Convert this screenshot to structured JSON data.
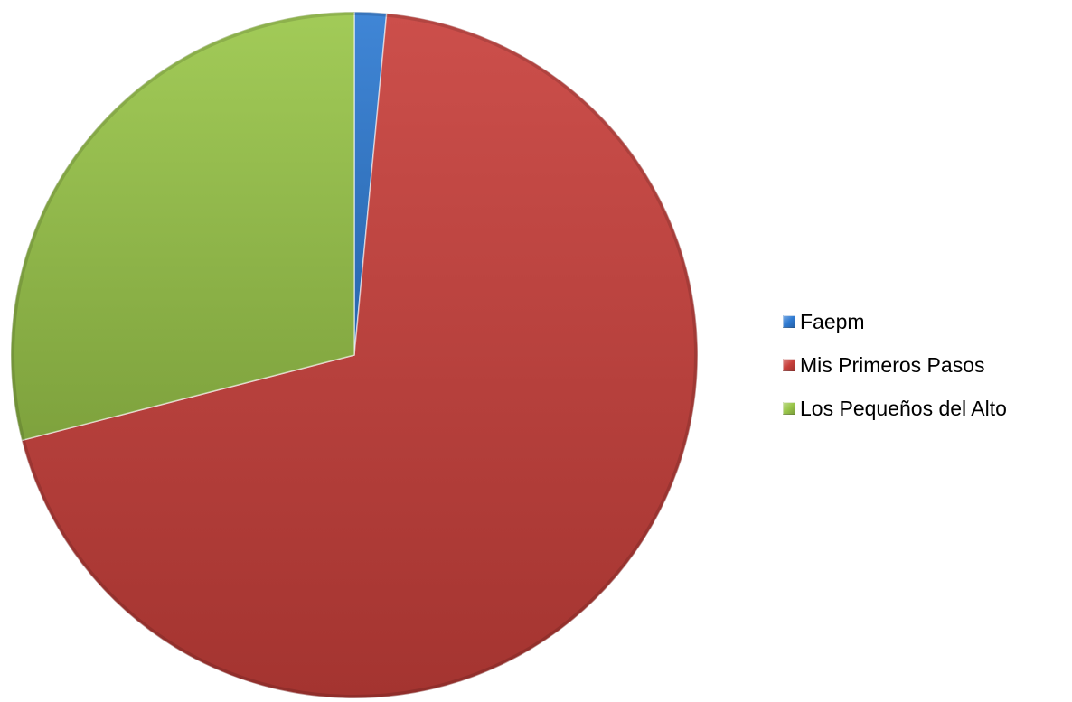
{
  "chart_data": {
    "type": "pie",
    "title": "",
    "slices": [
      {
        "label": "Faepm",
        "value": 1.5,
        "color": "#2f7bd2"
      },
      {
        "label": "Mis Primeros Pasos",
        "value": 69.5,
        "color": "#c8403b"
      },
      {
        "label": "Los Pequeños del Alto",
        "value": 29.0,
        "color": "#9ac64a"
      }
    ],
    "legend_position": "right",
    "start_angle": "12 o'clock",
    "direction": "clockwise"
  },
  "legend": {
    "items": [
      {
        "label": "Faepm"
      },
      {
        "label": "Mis Primeros Pasos"
      },
      {
        "label": "Los Pequeños del Alto"
      }
    ]
  }
}
